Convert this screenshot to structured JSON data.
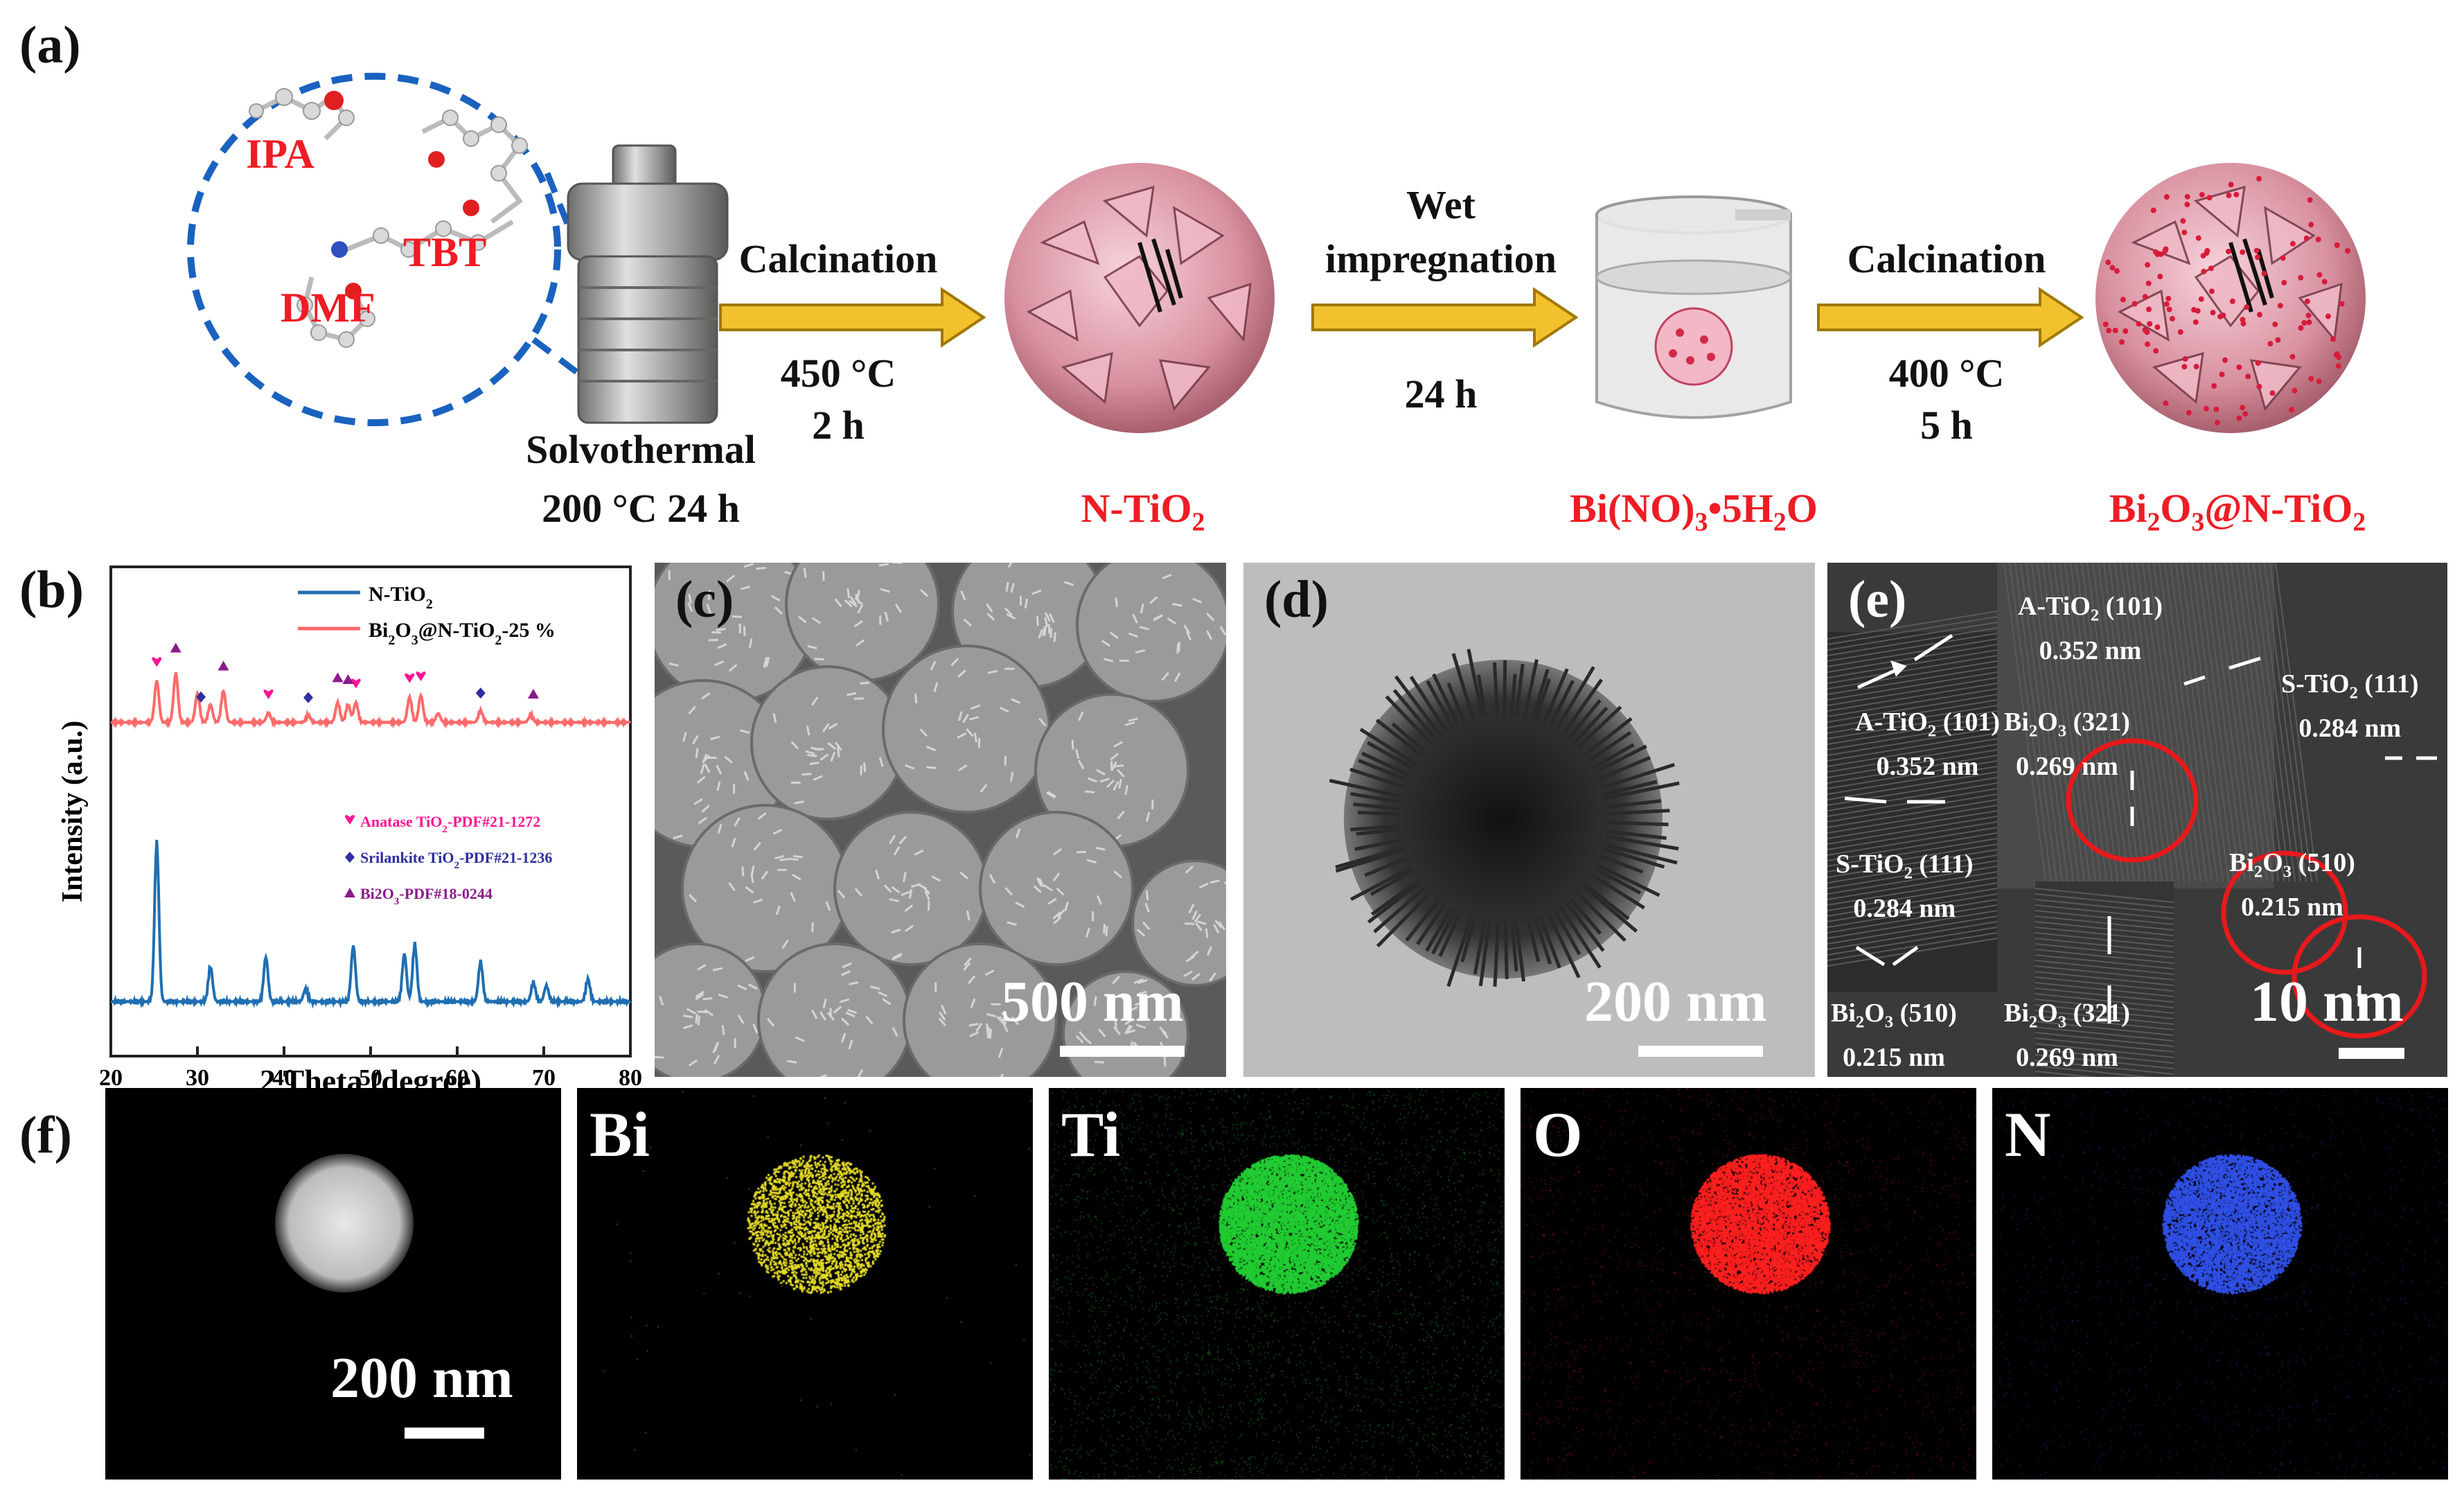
{
  "panels": {
    "a": "(a)",
    "b": "(b)",
    "c": "(c)",
    "d": "(d)",
    "e": "(e)",
    "f": "(f)"
  },
  "scheme": {
    "molecules": [
      "IPA",
      "TBT",
      "DMF"
    ],
    "solvothermal": "Solvothermal",
    "solvo_cond": "200 °C 24 h",
    "step1": {
      "name": "Calcination",
      "cond": [
        "450 °C",
        "2 h"
      ]
    },
    "step2": {
      "name": [
        "Wet",
        "impregnation"
      ],
      "cond": "24 h"
    },
    "step3": {
      "name": "Calcination",
      "cond": [
        "400 °C",
        "5 h"
      ]
    },
    "product1": "N-TiO2",
    "precursor": "Bi(NO)3•5H2O",
    "product2": "Bi2O3@N-TiO2"
  },
  "chart_data": {
    "type": "line",
    "xlabel": "2 Theta (degree)",
    "ylabel": "Intensity (a.u.)",
    "xlim": [
      20,
      80
    ],
    "xticks": [
      20,
      30,
      40,
      50,
      60,
      70,
      80
    ],
    "grid": false,
    "legend_position": "top-right",
    "series": [
      {
        "name": "N-TiO2",
        "color": "#1f6fb2",
        "peaks": [
          [
            25.3,
            1.0
          ],
          [
            31.5,
            0.22
          ],
          [
            37.9,
            0.28
          ],
          [
            42.5,
            0.08
          ],
          [
            48.0,
            0.35
          ],
          [
            53.9,
            0.3
          ],
          [
            55.1,
            0.36
          ],
          [
            62.7,
            0.25
          ],
          [
            68.8,
            0.12
          ],
          [
            70.3,
            0.1
          ],
          [
            75.1,
            0.14
          ]
        ]
      },
      {
        "name": "Bi2O3@N-TiO2-25 %",
        "color": "#ff6a6a",
        "peaks": [
          [
            25.3,
            0.46
          ],
          [
            27.5,
            0.55
          ],
          [
            30.0,
            0.32
          ],
          [
            31.5,
            0.2
          ],
          [
            33.0,
            0.35
          ],
          [
            38.2,
            0.1
          ],
          [
            42.8,
            0.08
          ],
          [
            46.2,
            0.22
          ],
          [
            47.4,
            0.2
          ],
          [
            48.3,
            0.22
          ],
          [
            54.5,
            0.28
          ],
          [
            55.8,
            0.3
          ],
          [
            57.8,
            0.1
          ],
          [
            62.7,
            0.13
          ],
          [
            68.5,
            0.08
          ]
        ]
      }
    ],
    "phase_legend": [
      "Anatase TiO2-PDF#21-1272",
      "Srilankite TiO2-PDF#21-1236",
      "Bi2O3-PDF#18-0244"
    ],
    "phase_colors": [
      "#ff1493",
      "#2e2ea0",
      "#8b1a8b"
    ],
    "markers": {
      "anatase": [
        25.3,
        38.2,
        48.3,
        54.5,
        55.8
      ],
      "srilankite": [
        30.4,
        42.8,
        62.7
      ],
      "bi2o3": [
        27.5,
        33.0,
        46.2,
        47.4,
        68.8
      ]
    }
  },
  "scalebars": {
    "c": "500 nm",
    "d": "200 nm",
    "e": "10 nm",
    "f": "200 nm"
  },
  "hrtem": {
    "a_top": "A-TiO2 (101)",
    "a_top_d": "0.352 nm",
    "s_top": "S-TiO2 (111)",
    "s_top_d": "0.284 nm",
    "a_left": "A-TiO2 (101)",
    "a_left_d": "0.352 nm",
    "bi321_top": "Bi2O3 (321)",
    "bi321_top_d": "0.269 nm",
    "s_left": "S-TiO2 (111)",
    "s_left_d": "0.284 nm",
    "bi510_r": "Bi2O3 (510)",
    "bi510_r_d": "0.215 nm",
    "bi510_b": "Bi2O3 (510)",
    "bi510_b_d": "0.215 nm",
    "bi321_b": "Bi2O3 (321)",
    "bi321_b_d": "0.269 nm"
  },
  "eds": {
    "bi": "Bi",
    "ti": "Ti",
    "o": "O",
    "n": "N",
    "colors": {
      "bi": "#e6dc28",
      "ti": "#22cc33",
      "o": "#ff2020",
      "n": "#3050e6"
    }
  }
}
